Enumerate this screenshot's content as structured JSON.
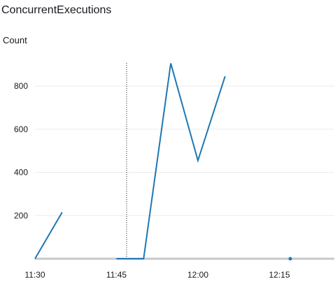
{
  "chart_data": {
    "type": "line",
    "title": "ConcurrentExecutions",
    "ylabel": "Count",
    "xlabel": "",
    "x_ticks": [
      "11:30",
      "11:45",
      "12:00",
      "12:15"
    ],
    "y_ticks": [
      200,
      400,
      600,
      800
    ],
    "xlim_minutes": [
      11.5,
      12.5
    ],
    "ylim": [
      0,
      900
    ],
    "grid": true,
    "marker_time": "11:47",
    "series": [
      {
        "color": "#1f77b4",
        "segments": [
          [
            [
              "11:30",
              0
            ],
            [
              "11:35",
              215
            ]
          ],
          [
            [
              "11:45",
              0
            ],
            [
              "11:50",
              0
            ],
            [
              "11:55",
              905
            ],
            [
              "12:00",
              455
            ],
            [
              "12:05",
              845
            ]
          ],
          [
            [
              "12:17",
              0
            ]
          ]
        ]
      }
    ]
  }
}
